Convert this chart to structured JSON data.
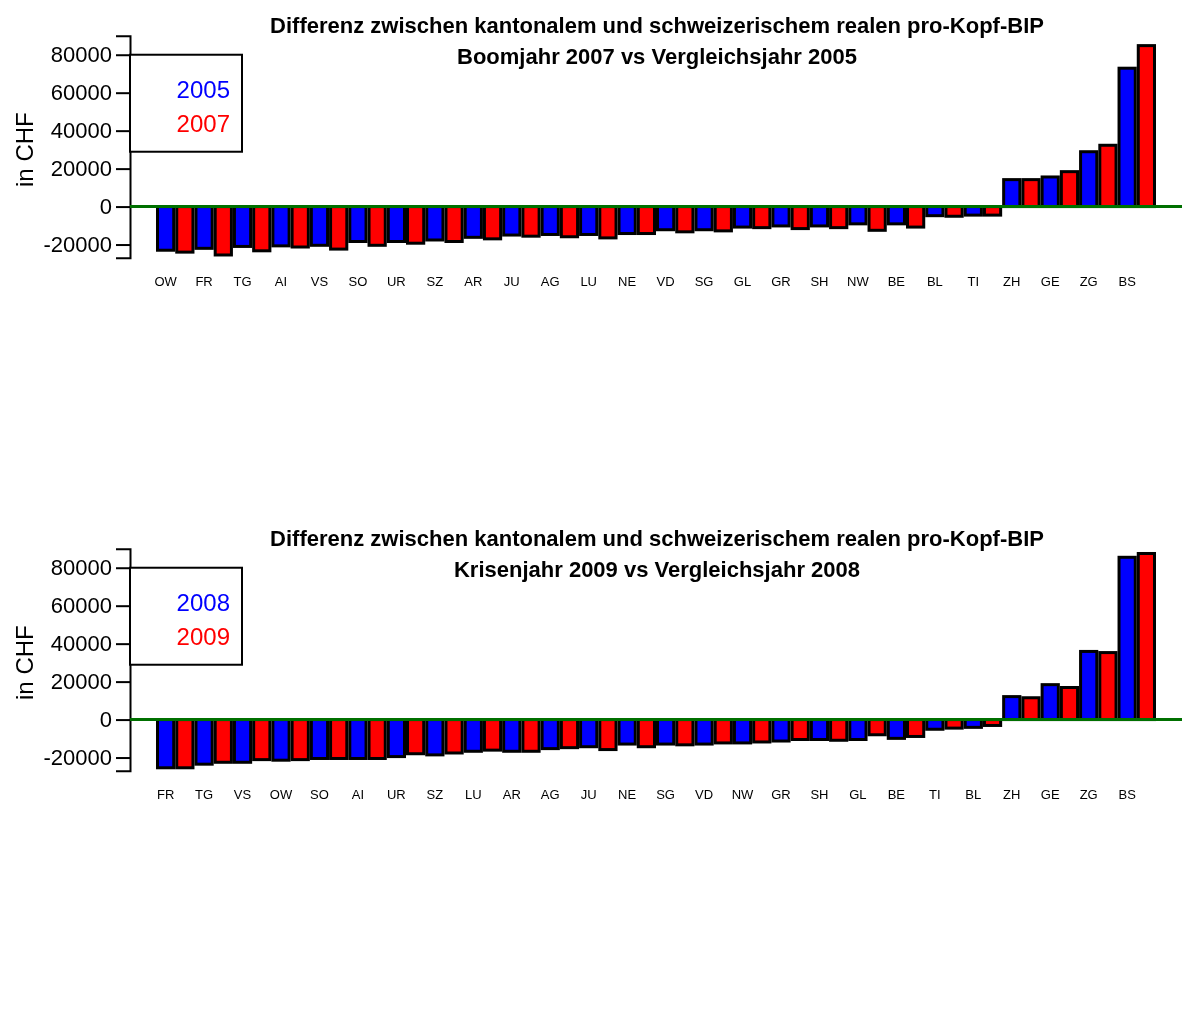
{
  "chart_data": [
    {
      "type": "bar",
      "title": "Differenz zwischen kantonalem und schweizerischem realen pro-Kopf-BIP",
      "subtitle": "Boomjahr 2007 vs Vergleichsjahr 2005",
      "ylabel": "in CHF",
      "categories": [
        "OW",
        "FR",
        "TG",
        "AI",
        "VS",
        "SO",
        "UR",
        "SZ",
        "AR",
        "JU",
        "AG",
        "LU",
        "NE",
        "VD",
        "SG",
        "GL",
        "GR",
        "SH",
        "NW",
        "BE",
        "BL",
        "TI",
        "ZH",
        "GE",
        "ZG",
        "BS"
      ],
      "series": [
        {
          "name": "2005",
          "color": "#0000ff",
          "values": [
            -23000,
            -22000,
            -21000,
            -20700,
            -20400,
            -18400,
            -18400,
            -17600,
            -16200,
            -15000,
            -14700,
            -14700,
            -14200,
            -12200,
            -12200,
            -10800,
            -10200,
            -10200,
            -9100,
            -9100,
            -4800,
            -4500,
            14200,
            15600,
            28900,
            72900
          ]
        },
        {
          "name": "2007",
          "color": "#ff0000",
          "values": [
            -24000,
            -25500,
            -23300,
            -21300,
            -22400,
            -20400,
            -19300,
            -18400,
            -17000,
            -15600,
            -15900,
            -16500,
            -14200,
            -13300,
            -12800,
            -11100,
            -11600,
            -11100,
            -12500,
            -10800,
            -5100,
            -4500,
            14200,
            18400,
            32300,
            84800
          ]
        }
      ],
      "ylim": [
        -27000,
        90000
      ],
      "yticks": [
        -20000,
        0,
        20000,
        40000,
        60000,
        80000
      ],
      "legend": "top left",
      "grid": false,
      "ref_lines": [
        {
          "axis": "y",
          "value": 0,
          "color": "#007000"
        }
      ]
    },
    {
      "type": "bar",
      "title": "Differenz zwischen kantonalem und schweizerischem realen pro-Kopf-BIP",
      "subtitle": "Krisenjahr 2009 vs Vergleichsjahr 2008",
      "ylabel": "in CHF",
      "categories": [
        "FR",
        "TG",
        "VS",
        "OW",
        "SO",
        "AI",
        "UR",
        "SZ",
        "LU",
        "AR",
        "AG",
        "JU",
        "NE",
        "SG",
        "VD",
        "NW",
        "GR",
        "SH",
        "GL",
        "BE",
        "TI",
        "BL",
        "ZH",
        "GE",
        "ZG",
        "BS"
      ],
      "series": [
        {
          "name": "2008",
          "color": "#0000ff",
          "values": [
            -25400,
            -23500,
            -22500,
            -21400,
            -20500,
            -20500,
            -19500,
            -18600,
            -16700,
            -16700,
            -15300,
            -14300,
            -12900,
            -12900,
            -12900,
            -12300,
            -11300,
            -10500,
            -10500,
            -9900,
            -5100,
            -4100,
            12100,
            18400,
            35900,
            85500
          ]
        },
        {
          "name": "2009",
          "color": "#ff0000",
          "values": [
            -25400,
            -22500,
            -21100,
            -21100,
            -20500,
            -20500,
            -18000,
            -17600,
            -16100,
            -16700,
            -14800,
            -15800,
            -14300,
            -13300,
            -12300,
            -11800,
            -10500,
            -10900,
            -8000,
            -8900,
            -4500,
            -3100,
            11500,
            16900,
            35300,
            87500
          ]
        }
      ],
      "ylim": [
        -27000,
        90000
      ],
      "yticks": [
        -20000,
        0,
        20000,
        40000,
        60000,
        80000
      ],
      "legend": "top left",
      "grid": false,
      "ref_lines": [
        {
          "axis": "y",
          "value": 0,
          "color": "#007000"
        }
      ]
    }
  ]
}
